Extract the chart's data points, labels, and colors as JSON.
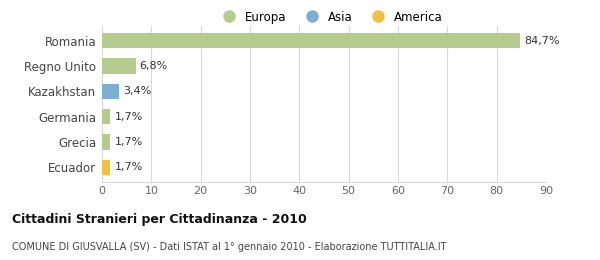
{
  "categories": [
    "Romania",
    "Regno Unito",
    "Kazakhstan",
    "Germania",
    "Grecia",
    "Ecuador"
  ],
  "values": [
    84.7,
    6.8,
    3.4,
    1.7,
    1.7,
    1.7
  ],
  "labels": [
    "84,7%",
    "6,8%",
    "3,4%",
    "1,7%",
    "1,7%",
    "1,7%"
  ],
  "colors": [
    "#b5cc8e",
    "#b5cc8e",
    "#7bafd4",
    "#b5cc8e",
    "#b5cc8e",
    "#f0c040"
  ],
  "legend_labels": [
    "Europa",
    "Asia",
    "America"
  ],
  "legend_colors": [
    "#b5cc8e",
    "#7bafd4",
    "#f0c040"
  ],
  "xlim": [
    0,
    90
  ],
  "xticks": [
    0,
    10,
    20,
    30,
    40,
    50,
    60,
    70,
    80,
    90
  ],
  "title": "Cittadini Stranieri per Cittadinanza - 2010",
  "subtitle": "COMUNE DI GIUSVALLA (SV) - Dati ISTAT al 1° gennaio 2010 - Elaborazione TUTTITALIA.IT",
  "background_color": "#ffffff",
  "grid_color": "#d8d8d8"
}
